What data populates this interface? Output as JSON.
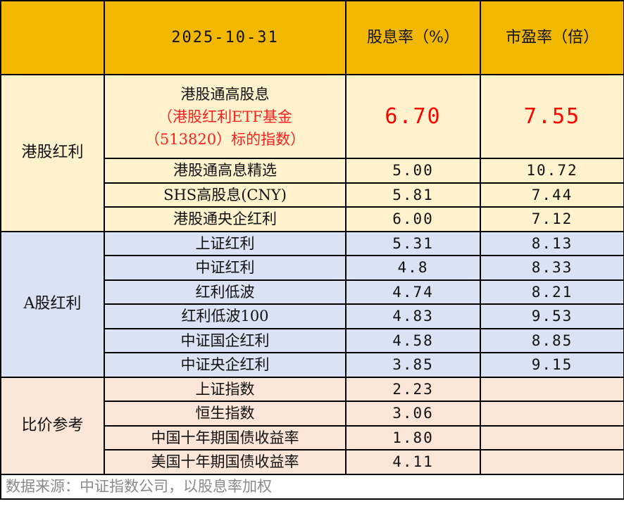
{
  "header": {
    "date": "2025-10-31",
    "col_yield": "股息率（%）",
    "col_pe": "市盈率（倍）"
  },
  "colors": {
    "header": "#F2B800",
    "hk": "#FFF2CC",
    "a_share": "#DAE3F3",
    "compare": "#FBE5D6",
    "highlight": "#FF0000"
  },
  "groups": [
    {
      "name": "港股红利",
      "rows": [
        {
          "name": "港股通高股息",
          "note1": "（港股红利ETF基金",
          "note2": "（513820）标的指数）",
          "yield": "6.70",
          "pe": "7.55"
        },
        {
          "name": "港股通高息精选",
          "yield": "5.00",
          "pe": "10.72"
        },
        {
          "name": "SHS高股息(CNY)",
          "yield": "5.81",
          "pe": "7.44"
        },
        {
          "name": "港股通央企红利",
          "yield": "6.00",
          "pe": "7.12"
        }
      ]
    },
    {
      "name": "A股红利",
      "rows": [
        {
          "name": "上证红利",
          "yield": "5.31",
          "pe": "8.13"
        },
        {
          "name": "中证红利",
          "yield": "4.8",
          "pe": "8.33"
        },
        {
          "name": "红利低波",
          "yield": "4.74",
          "pe": "8.21"
        },
        {
          "name": "红利低波100",
          "yield": "4.83",
          "pe": "9.53"
        },
        {
          "name": "中证国企红利",
          "yield": "4.58",
          "pe": "8.85"
        },
        {
          "name": "中证央企红利",
          "yield": "3.85",
          "pe": "9.15"
        }
      ]
    },
    {
      "name": "比价参考",
      "rows": [
        {
          "name": "上证指数",
          "yield": "2.23",
          "pe": ""
        },
        {
          "name": "恒生指数",
          "yield": "3.06",
          "pe": ""
        },
        {
          "name": "中国十年期国债收益率",
          "yield": "1.80",
          "pe": ""
        },
        {
          "name": "美国十年期国债收益率",
          "yield": "4.11",
          "pe": ""
        }
      ]
    }
  ],
  "footer": "数据来源：中证指数公司，以股息率加权"
}
